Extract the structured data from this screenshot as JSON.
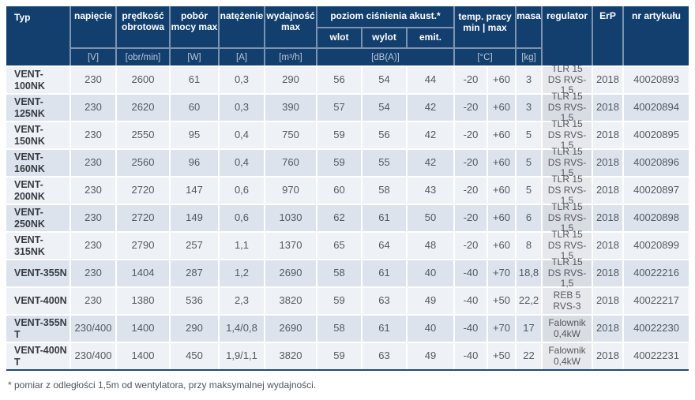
{
  "colors": {
    "header_bg": "#123f6e",
    "header_divider": "#7d94b0",
    "row_light": "#eef1f6",
    "row_dark": "#dce3ed",
    "regulator_col_light": "#e7e8ec",
    "regulator_col_dark": "#d8dce3",
    "bottom_border": "#1c4a7b"
  },
  "table": {
    "header": {
      "typ": "Typ",
      "napiecie": {
        "label": "napięcie",
        "unit": "[V]"
      },
      "predkosc": {
        "label": "prędkość obrotowa",
        "unit": "[obr/min]"
      },
      "pobor": {
        "label": "pobór mocy max",
        "unit": "[W]"
      },
      "natezenie": {
        "label": "natężenie",
        "unit": "[A]"
      },
      "wydajnosc": {
        "label": "wydajność max",
        "unit": "[m³/h]"
      },
      "akustyka": {
        "label": "poziom ciśnienia akust.*",
        "unit": "[dB(A)]",
        "sub": {
          "wlot": "wlot",
          "wylot": "wylot",
          "emit": "emit."
        }
      },
      "temp": {
        "label": "temp. pracy min | max",
        "unit": "[°C]"
      },
      "masa": {
        "label": "masa",
        "unit": "[kg]"
      },
      "regulator": "regulator",
      "erp": "ErP",
      "nr_artykulu": "nr artykułu"
    },
    "rows": [
      {
        "typ": "VENT-100NK",
        "values": [
          "230",
          "2600",
          "61",
          "0,3",
          "290",
          "56",
          "54",
          "44",
          "-20",
          "+60",
          "3"
        ],
        "regulator": "TLR 15 DS RVS-1,5",
        "erp": "2018",
        "nr": "40020893"
      },
      {
        "typ": "VENT-125NK",
        "values": [
          "230",
          "2620",
          "60",
          "0,3",
          "390",
          "57",
          "54",
          "42",
          "-20",
          "+60",
          "3"
        ],
        "regulator": "TLR 15 DS RVS-1,5",
        "erp": "2018",
        "nr": "40020894"
      },
      {
        "typ": "VENT-150NK",
        "values": [
          "230",
          "2550",
          "95",
          "0,4",
          "750",
          "59",
          "56",
          "42",
          "-20",
          "+60",
          "5"
        ],
        "regulator": "TLR 15 DS RVS-1,5",
        "erp": "2018",
        "nr": "40020895"
      },
      {
        "typ": "VENT-160NK",
        "values": [
          "230",
          "2560",
          "96",
          "0,4",
          "760",
          "59",
          "55",
          "42",
          "-20",
          "+60",
          "5"
        ],
        "regulator": "TLR 15 DS RVS-1,5",
        "erp": "2018",
        "nr": "40020896"
      },
      {
        "typ": "VENT-200NK",
        "values": [
          "230",
          "2720",
          "147",
          "0,6",
          "970",
          "60",
          "58",
          "43",
          "-20",
          "+60",
          "5"
        ],
        "regulator": "TLR 15 DS RVS-1,5",
        "erp": "2018",
        "nr": "40020897"
      },
      {
        "typ": "VENT-250NK",
        "values": [
          "230",
          "2720",
          "149",
          "0,6",
          "1030",
          "62",
          "61",
          "50",
          "-20",
          "+60",
          "6"
        ],
        "regulator": "TLR 15 DS RVS-1,5",
        "erp": "2018",
        "nr": "40020898"
      },
      {
        "typ": "VENT-315NK",
        "values": [
          "230",
          "2790",
          "257",
          "1,1",
          "1370",
          "65",
          "64",
          "48",
          "-20",
          "+60",
          "8"
        ],
        "regulator": "TLR 15 DS RVS-1,5",
        "erp": "2018",
        "nr": "40020899"
      },
      {
        "typ": "VENT-355N",
        "values": [
          "230",
          "1404",
          "287",
          "1,2",
          "2690",
          "58",
          "61",
          "40",
          "-40",
          "+70",
          "18,8"
        ],
        "regulator": "TLR 15 DS RVS-1,5",
        "erp": "2018",
        "nr": "40022216"
      },
      {
        "typ": "VENT-400N",
        "values": [
          "230",
          "1380",
          "536",
          "2,3",
          "3820",
          "59",
          "63",
          "49",
          "-40",
          "+50",
          "22,2"
        ],
        "regulator": "REB 5 RVS-3",
        "erp": "2018",
        "nr": "40022217"
      },
      {
        "typ": "VENT-355N T",
        "values": [
          "230/400",
          "1400",
          "290",
          "1,4/0,8",
          "2690",
          "58",
          "61",
          "40",
          "-40",
          "+70",
          "17"
        ],
        "regulator": "Falownik 0,4kW",
        "erp": "2018",
        "nr": "40022230"
      },
      {
        "typ": "VENT-400N T",
        "values": [
          "230/400",
          "1400",
          "450",
          "1,9/1,1",
          "3820",
          "59",
          "63",
          "49",
          "-40",
          "+50",
          "22"
        ],
        "regulator": "Falownik 0,4kW",
        "erp": "2018",
        "nr": "40022231"
      }
    ],
    "footnote": "* pomiar z odległości 1,5m od wentylatora, przy maksymalnej wydajności."
  }
}
